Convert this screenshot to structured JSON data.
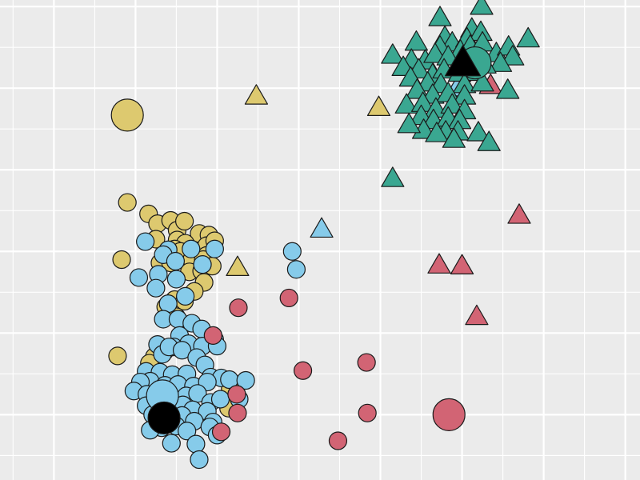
{
  "chart_data": {
    "type": "scatter",
    "title": "",
    "xlabel": "",
    "ylabel": "",
    "grid": true,
    "legend": "none",
    "xlim": [
      -0.66,
      7.18
    ],
    "ylim": [
      -0.8,
      5.08
    ],
    "colors": {
      "background": "#EBEBEB",
      "grid": "#FFFFFF",
      "stroke": "#1a1a1a",
      "group_1": "#DDC96F",
      "group_2": "#86CBEA",
      "group_3": "#D26474",
      "group_4": "#3AA791",
      "centroid": "#000000"
    },
    "shapes": [
      "circle",
      "triangle"
    ],
    "series": [
      {
        "color_key": "group_1",
        "shape": "circle",
        "points": [
          [
            0.9,
            2.6
          ],
          [
            1.16,
            2.46
          ],
          [
            1.27,
            2.34
          ],
          [
            1.43,
            2.38
          ],
          [
            1.51,
            2.26
          ],
          [
            1.6,
            2.37
          ],
          [
            1.78,
            2.22
          ],
          [
            1.9,
            2.2
          ],
          [
            1.87,
            2.07
          ],
          [
            1.97,
            2.13
          ],
          [
            1.51,
            2.14
          ],
          [
            1.61,
            2.1
          ],
          [
            1.68,
            2.0
          ],
          [
            1.48,
            2.03
          ],
          [
            1.55,
            2.0
          ],
          [
            1.87,
            1.95
          ],
          [
            1.69,
            1.9
          ],
          [
            1.83,
            1.9
          ],
          [
            1.25,
            2.15
          ],
          [
            0.83,
            1.9
          ],
          [
            1.3,
            1.86
          ],
          [
            1.43,
            1.86
          ],
          [
            1.66,
            1.75
          ],
          [
            1.81,
            1.76
          ],
          [
            1.94,
            1.82
          ],
          [
            1.84,
            1.62
          ],
          [
            1.72,
            1.51
          ],
          [
            1.48,
            1.41
          ],
          [
            1.37,
            1.32
          ],
          [
            1.6,
            1.39
          ],
          [
            1.5,
            1.2
          ],
          [
            0.78,
            0.72
          ],
          [
            1.23,
            0.71
          ],
          [
            1.36,
            0.78
          ],
          [
            2.16,
            0.32
          ],
          [
            2.14,
            0.08
          ],
          [
            1.17,
            0.63
          ]
        ]
      },
      {
        "color_key": "group_2",
        "shape": "circle",
        "points": [
          [
            1.12,
            2.12
          ],
          [
            1.4,
            2.02
          ],
          [
            1.68,
            2.03
          ],
          [
            1.97,
            2.03
          ],
          [
            1.82,
            1.84
          ],
          [
            1.34,
            1.96
          ],
          [
            1.49,
            1.88
          ],
          [
            1.28,
            1.72
          ],
          [
            1.04,
            1.68
          ],
          [
            1.25,
            1.55
          ],
          [
            1.5,
            1.66
          ],
          [
            1.61,
            1.45
          ],
          [
            1.4,
            1.36
          ],
          [
            1.34,
            1.17
          ],
          [
            1.52,
            1.17
          ],
          [
            1.69,
            1.12
          ],
          [
            1.81,
            1.05
          ],
          [
            1.54,
            0.97
          ],
          [
            1.97,
            0.92
          ],
          [
            1.47,
            0.83
          ],
          [
            1.65,
            0.87
          ],
          [
            1.82,
            0.84
          ],
          [
            2.0,
            0.84
          ],
          [
            1.27,
            0.86
          ],
          [
            1.33,
            0.74
          ],
          [
            1.41,
            0.83
          ],
          [
            1.57,
            0.79
          ],
          [
            1.75,
            0.7
          ],
          [
            1.85,
            0.61
          ],
          [
            1.13,
            0.53
          ],
          [
            1.3,
            0.52
          ],
          [
            1.45,
            0.49
          ],
          [
            1.63,
            0.5
          ],
          [
            1.92,
            0.46
          ],
          [
            2.05,
            0.45
          ],
          [
            2.15,
            0.43
          ],
          [
            1.18,
            0.41
          ],
          [
            1.36,
            0.36
          ],
          [
            1.52,
            0.37
          ],
          [
            1.71,
            0.35
          ],
          [
            1.88,
            0.4
          ],
          [
            1.06,
            0.4
          ],
          [
            0.98,
            0.29
          ],
          [
            1.14,
            0.25
          ],
          [
            1.29,
            0.25
          ],
          [
            1.46,
            0.19
          ],
          [
            1.62,
            0.23
          ],
          [
            1.76,
            0.26
          ],
          [
            1.92,
            0.15
          ],
          [
            2.04,
            0.19
          ],
          [
            2.27,
            0.19
          ],
          [
            2.35,
            0.42
          ],
          [
            1.27,
            0.07
          ],
          [
            1.44,
            0.08
          ],
          [
            1.58,
            0.12
          ],
          [
            1.7,
            0.06
          ],
          [
            1.88,
            0.04
          ],
          [
            1.13,
            0.11
          ],
          [
            1.21,
            0.0
          ],
          [
            1.57,
            -0.01
          ],
          [
            1.72,
            -0.08
          ],
          [
            1.95,
            -0.09
          ],
          [
            1.5,
            -0.14
          ],
          [
            1.32,
            -0.16
          ],
          [
            1.18,
            -0.19
          ],
          [
            1.63,
            -0.2
          ],
          [
            1.91,
            -0.15
          ],
          [
            2.0,
            -0.25
          ],
          [
            1.44,
            -0.35
          ],
          [
            1.74,
            -0.36
          ],
          [
            1.78,
            -0.55
          ],
          [
            2.92,
            2.0
          ],
          [
            2.97,
            1.78
          ]
        ]
      },
      {
        "color_key": "group_3",
        "shape": "circle",
        "points": [
          [
            2.26,
            1.31
          ],
          [
            2.88,
            1.43
          ],
          [
            2.24,
            0.25
          ],
          [
            2.25,
            0.02
          ],
          [
            1.95,
            0.97
          ],
          [
            3.05,
            0.54
          ],
          [
            3.83,
            0.64
          ],
          [
            3.84,
            0.02
          ],
          [
            3.48,
            -0.32
          ],
          [
            2.05,
            -0.21
          ]
        ]
      },
      {
        "color_key": "group_1",
        "shape": "triangle",
        "points": [
          [
            2.48,
            3.9
          ],
          [
            3.98,
            3.76
          ],
          [
            2.25,
            1.8
          ]
        ]
      },
      {
        "color_key": "group_2",
        "shape": "triangle",
        "points": [
          [
            4.94,
            4.0
          ],
          [
            3.28,
            2.27
          ]
        ]
      },
      {
        "color_key": "group_3",
        "shape": "triangle",
        "points": [
          [
            5.35,
            4.03
          ],
          [
            5.7,
            2.44
          ],
          [
            4.72,
            1.83
          ],
          [
            5.0,
            1.82
          ],
          [
            5.18,
            1.2
          ]
        ]
      },
      {
        "color_key": "group_4",
        "shape": "triangle",
        "points": [
          [
            5.24,
            5.0
          ],
          [
            4.73,
            4.86
          ],
          [
            5.12,
            4.72
          ],
          [
            4.79,
            4.62
          ],
          [
            4.88,
            4.55
          ],
          [
            5.06,
            4.6
          ],
          [
            5.23,
            4.68
          ],
          [
            4.44,
            4.56
          ],
          [
            4.73,
            4.5
          ],
          [
            4.98,
            4.45
          ],
          [
            5.1,
            4.51
          ],
          [
            5.25,
            4.55
          ],
          [
            4.15,
            4.4
          ],
          [
            4.38,
            4.34
          ],
          [
            4.55,
            4.33
          ],
          [
            4.67,
            4.41
          ],
          [
            4.83,
            4.38
          ],
          [
            4.99,
            4.31
          ],
          [
            5.18,
            4.34
          ],
          [
            5.42,
            4.42
          ],
          [
            5.57,
            4.5
          ],
          [
            5.81,
            4.6
          ],
          [
            5.62,
            4.38
          ],
          [
            5.47,
            4.3
          ],
          [
            5.28,
            4.28
          ],
          [
            4.28,
            4.25
          ],
          [
            4.47,
            4.22
          ],
          [
            4.64,
            4.16
          ],
          [
            4.78,
            4.22
          ],
          [
            4.97,
            4.18
          ],
          [
            5.16,
            4.19
          ],
          [
            4.37,
            4.12
          ],
          [
            4.58,
            4.06
          ],
          [
            4.74,
            4.04
          ],
          [
            5.03,
            4.04
          ],
          [
            5.25,
            4.06
          ],
          [
            4.45,
            3.97
          ],
          [
            4.64,
            3.91
          ],
          [
            4.83,
            3.93
          ],
          [
            5.03,
            3.9
          ],
          [
            5.56,
            3.97
          ],
          [
            4.32,
            3.79
          ],
          [
            4.52,
            3.81
          ],
          [
            4.68,
            3.74
          ],
          [
            4.88,
            3.79
          ],
          [
            5.03,
            3.72
          ],
          [
            4.5,
            3.65
          ],
          [
            4.65,
            3.6
          ],
          [
            4.83,
            3.63
          ],
          [
            4.97,
            3.6
          ],
          [
            4.53,
            3.48
          ],
          [
            4.8,
            3.46
          ],
          [
            4.95,
            3.46
          ],
          [
            4.69,
            3.44
          ],
          [
            4.9,
            3.37
          ],
          [
            5.2,
            3.45
          ],
          [
            5.33,
            3.33
          ],
          [
            4.35,
            3.55
          ],
          [
            4.15,
            2.89
          ]
        ]
      },
      {
        "color_key": "group_1",
        "shape": "circle-large",
        "points": [
          [
            0.9,
            3.67
          ]
        ]
      },
      {
        "color_key": "group_3",
        "shape": "circle-large",
        "points": [
          [
            4.84,
            0.0
          ]
        ]
      },
      {
        "color_key": "group_4",
        "shape": "circle-large",
        "points": [
          [
            5.16,
            4.31
          ]
        ]
      },
      {
        "color_key": "group_2",
        "shape": "circle-large",
        "points": [
          [
            1.33,
            0.23
          ]
        ]
      },
      {
        "color_key": "centroid",
        "shape": "circle-large",
        "points": [
          [
            1.35,
            -0.04
          ]
        ]
      },
      {
        "color_key": "centroid",
        "shape": "triangle-large",
        "points": [
          [
            5.01,
            4.3
          ]
        ]
      }
    ]
  }
}
